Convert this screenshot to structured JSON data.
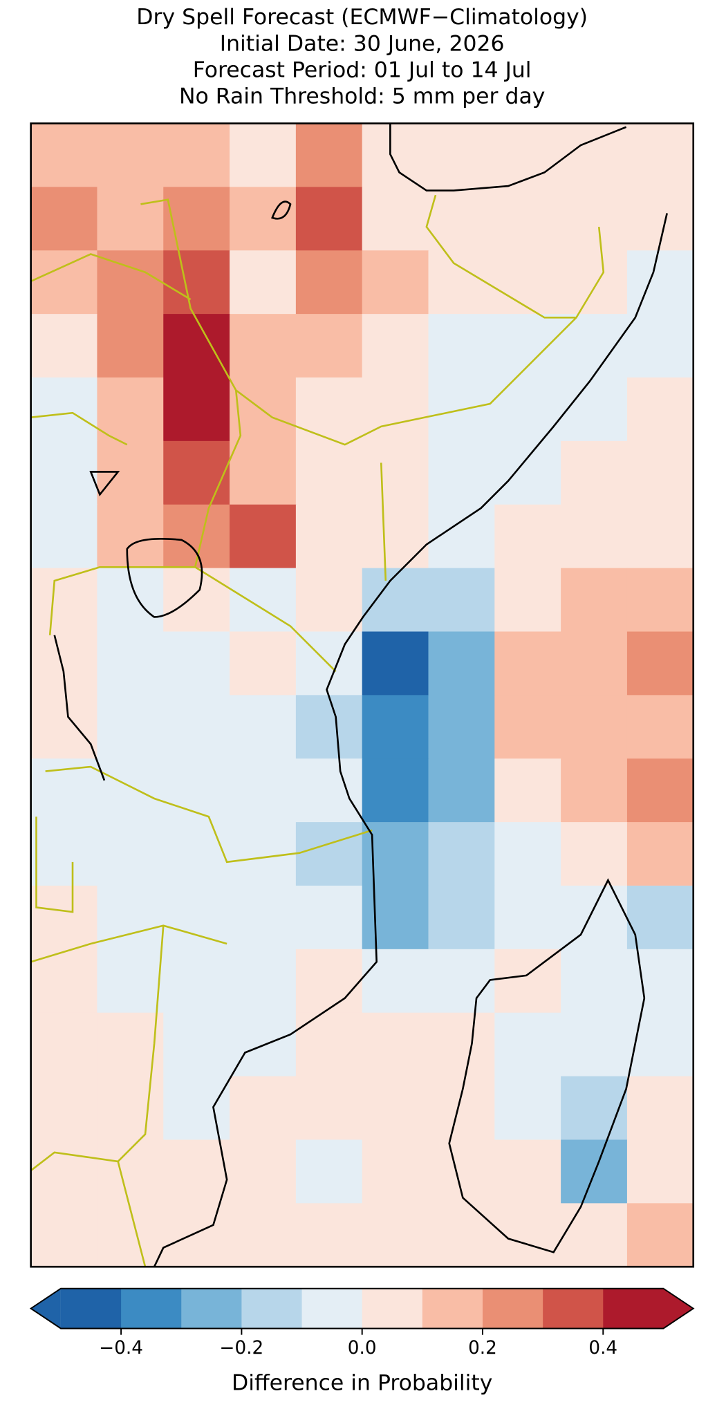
{
  "chart_data": {
    "type": "heatmap",
    "title": [
      "Dry Spell Forecast (ECMWF−Climatology)",
      "Initial Date: 30 June, 2026",
      "Forecast Period: 01 Jul to 14 Jul",
      "No Rain Threshold: 5 mm per day"
    ],
    "values": [
      [
        0.15,
        0.15,
        0.15,
        0.05,
        0.25,
        0.05,
        0.05,
        0.05,
        0.05,
        0.05
      ],
      [
        0.25,
        0.15,
        0.25,
        0.15,
        0.35,
        0.05,
        0.05,
        0.05,
        0.05,
        0.05
      ],
      [
        0.15,
        0.25,
        0.35,
        0.05,
        0.25,
        0.15,
        0.05,
        0.05,
        0.05,
        -0.05
      ],
      [
        0.05,
        0.25,
        0.45,
        0.15,
        0.15,
        0.05,
        -0.05,
        -0.05,
        -0.05,
        -0.05
      ],
      [
        -0.05,
        0.15,
        0.45,
        0.15,
        0.05,
        0.05,
        -0.05,
        -0.05,
        -0.05,
        0.05
      ],
      [
        -0.05,
        0.15,
        0.35,
        0.15,
        0.05,
        0.05,
        -0.05,
        -0.05,
        0.05,
        0.05
      ],
      [
        -0.05,
        0.15,
        0.25,
        0.35,
        0.05,
        0.05,
        -0.05,
        0.05,
        0.05,
        0.05
      ],
      [
        0.05,
        -0.05,
        0.05,
        -0.05,
        0.05,
        -0.15,
        -0.15,
        0.05,
        0.15,
        0.15
      ],
      [
        0.05,
        -0.05,
        -0.05,
        0.05,
        -0.05,
        -0.45,
        -0.25,
        0.15,
        0.15,
        0.25
      ],
      [
        0.05,
        -0.05,
        -0.05,
        -0.05,
        -0.15,
        -0.35,
        -0.25,
        0.15,
        0.15,
        0.15
      ],
      [
        -0.05,
        -0.05,
        -0.05,
        -0.05,
        -0.05,
        -0.35,
        -0.25,
        0.05,
        0.15,
        0.25
      ],
      [
        -0.05,
        -0.05,
        -0.05,
        -0.05,
        -0.15,
        -0.25,
        -0.15,
        -0.05,
        0.05,
        0.15
      ],
      [
        0.05,
        -0.05,
        -0.05,
        -0.05,
        -0.05,
        -0.25,
        -0.15,
        -0.05,
        -0.05,
        -0.15
      ],
      [
        0.05,
        -0.05,
        -0.05,
        -0.05,
        0.05,
        -0.05,
        -0.05,
        0.05,
        -0.05,
        -0.05
      ],
      [
        0.05,
        0.05,
        -0.05,
        -0.05,
        0.05,
        0.05,
        0.05,
        -0.05,
        -0.05,
        -0.05
      ],
      [
        0.05,
        0.05,
        -0.05,
        0.05,
        0.05,
        0.05,
        0.05,
        -0.05,
        -0.15,
        0.05
      ],
      [
        0.05,
        0.05,
        0.05,
        0.05,
        -0.05,
        0.05,
        0.05,
        0.05,
        -0.25,
        0.05
      ],
      [
        0.05,
        0.05,
        0.05,
        0.05,
        0.05,
        0.05,
        0.05,
        0.05,
        0.05,
        0.15
      ]
    ],
    "colorbar": {
      "label": "Difference in Probability",
      "boundaries": [
        -0.5,
        -0.4,
        -0.3,
        -0.2,
        -0.1,
        0,
        0.1,
        0.2,
        0.3,
        0.4,
        0.5
      ],
      "colors": [
        "#1f63a8",
        "#3c8bc3",
        "#78b4d8",
        "#b7d6ea",
        "#e4eef5",
        "#fbe5dc",
        "#f9bda6",
        "#ea8f74",
        "#d05449",
        "#ad1a2c"
      ],
      "extend": "both",
      "ticks": [
        {
          "value": -0.4,
          "label": "−0.4"
        },
        {
          "value": -0.2,
          "label": "−0.2"
        },
        {
          "value": 0,
          "label": "0.0"
        },
        0.2,
        0.4
      ]
    }
  }
}
